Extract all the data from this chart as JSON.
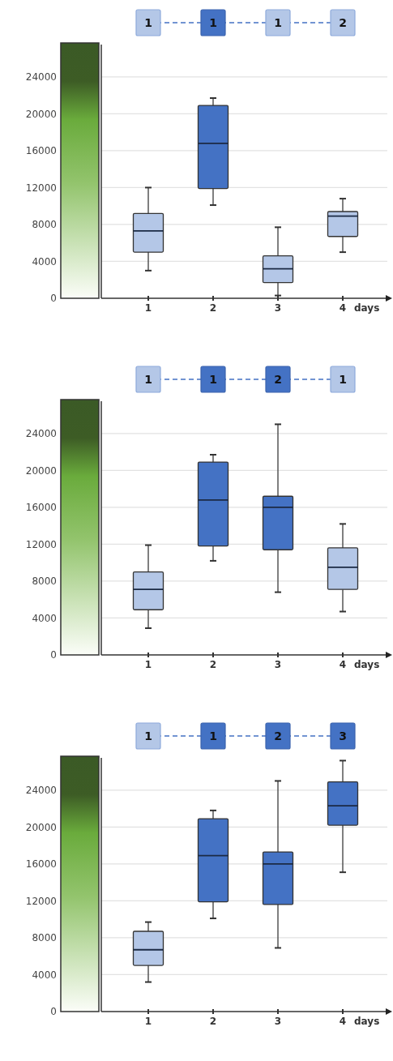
{
  "chart_data": [
    {
      "type": "box",
      "categories": [
        "1",
        "2",
        "3",
        "4"
      ],
      "xlabel": "days",
      "ylim": [
        0,
        27500
      ],
      "yticks": [
        0,
        4000,
        8000,
        12000,
        16000,
        20000,
        24000
      ],
      "grid": "y",
      "colors": [
        "#b4c7e7",
        "#4472c4",
        "#b4c7e7",
        "#b4c7e7"
      ],
      "annotations": [
        "1",
        "1",
        "1",
        "2"
      ],
      "boxes": [
        {
          "low": 3000,
          "q1": 5000,
          "median": 7300,
          "q3": 9200,
          "high": 12000
        },
        {
          "low": 10100,
          "q1": 11900,
          "median": 16800,
          "q3": 20900,
          "high": 21700
        },
        {
          "low": 300,
          "q1": 1700,
          "median": 3200,
          "q3": 4600,
          "high": 7700
        },
        {
          "low": 5000,
          "q1": 6700,
          "median": 8900,
          "q3": 9400,
          "high": 10800
        }
      ]
    },
    {
      "type": "box",
      "categories": [
        "1",
        "2",
        "3",
        "4"
      ],
      "xlabel": "days",
      "ylim": [
        0,
        27500
      ],
      "yticks": [
        0,
        4000,
        8000,
        12000,
        16000,
        20000,
        24000
      ],
      "grid": "y",
      "colors": [
        "#b4c7e7",
        "#4472c4",
        "#4472c4",
        "#b4c7e7"
      ],
      "annotations": [
        "1",
        "1",
        "2",
        "1"
      ],
      "boxes": [
        {
          "low": 2900,
          "q1": 4900,
          "median": 7100,
          "q3": 9000,
          "high": 11900
        },
        {
          "low": 10200,
          "q1": 11800,
          "median": 16800,
          "q3": 20900,
          "high": 21700
        },
        {
          "low": 6800,
          "q1": 11400,
          "median": 16000,
          "q3": 17200,
          "high": 25000
        },
        {
          "low": 4700,
          "q1": 7100,
          "median": 9500,
          "q3": 11600,
          "high": 14200
        }
      ]
    },
    {
      "type": "box",
      "categories": [
        "1",
        "2",
        "3",
        "4"
      ],
      "xlabel": "days",
      "ylim": [
        0,
        27500
      ],
      "yticks": [
        0,
        4000,
        8000,
        12000,
        16000,
        20000,
        24000
      ],
      "grid": "y",
      "colors": [
        "#b4c7e7",
        "#4472c4",
        "#4472c4",
        "#4472c4"
      ],
      "annotations": [
        "1",
        "1",
        "2",
        "3"
      ],
      "boxes": [
        {
          "low": 3200,
          "q1": 5000,
          "median": 6700,
          "q3": 8700,
          "high": 9700
        },
        {
          "low": 10100,
          "q1": 11900,
          "median": 16900,
          "q3": 20900,
          "high": 21800
        },
        {
          "low": 6900,
          "q1": 11600,
          "median": 16000,
          "q3": 17300,
          "high": 25000
        },
        {
          "low": 15100,
          "q1": 20200,
          "median": 22300,
          "q3": 24900,
          "high": 27200
        }
      ]
    }
  ]
}
